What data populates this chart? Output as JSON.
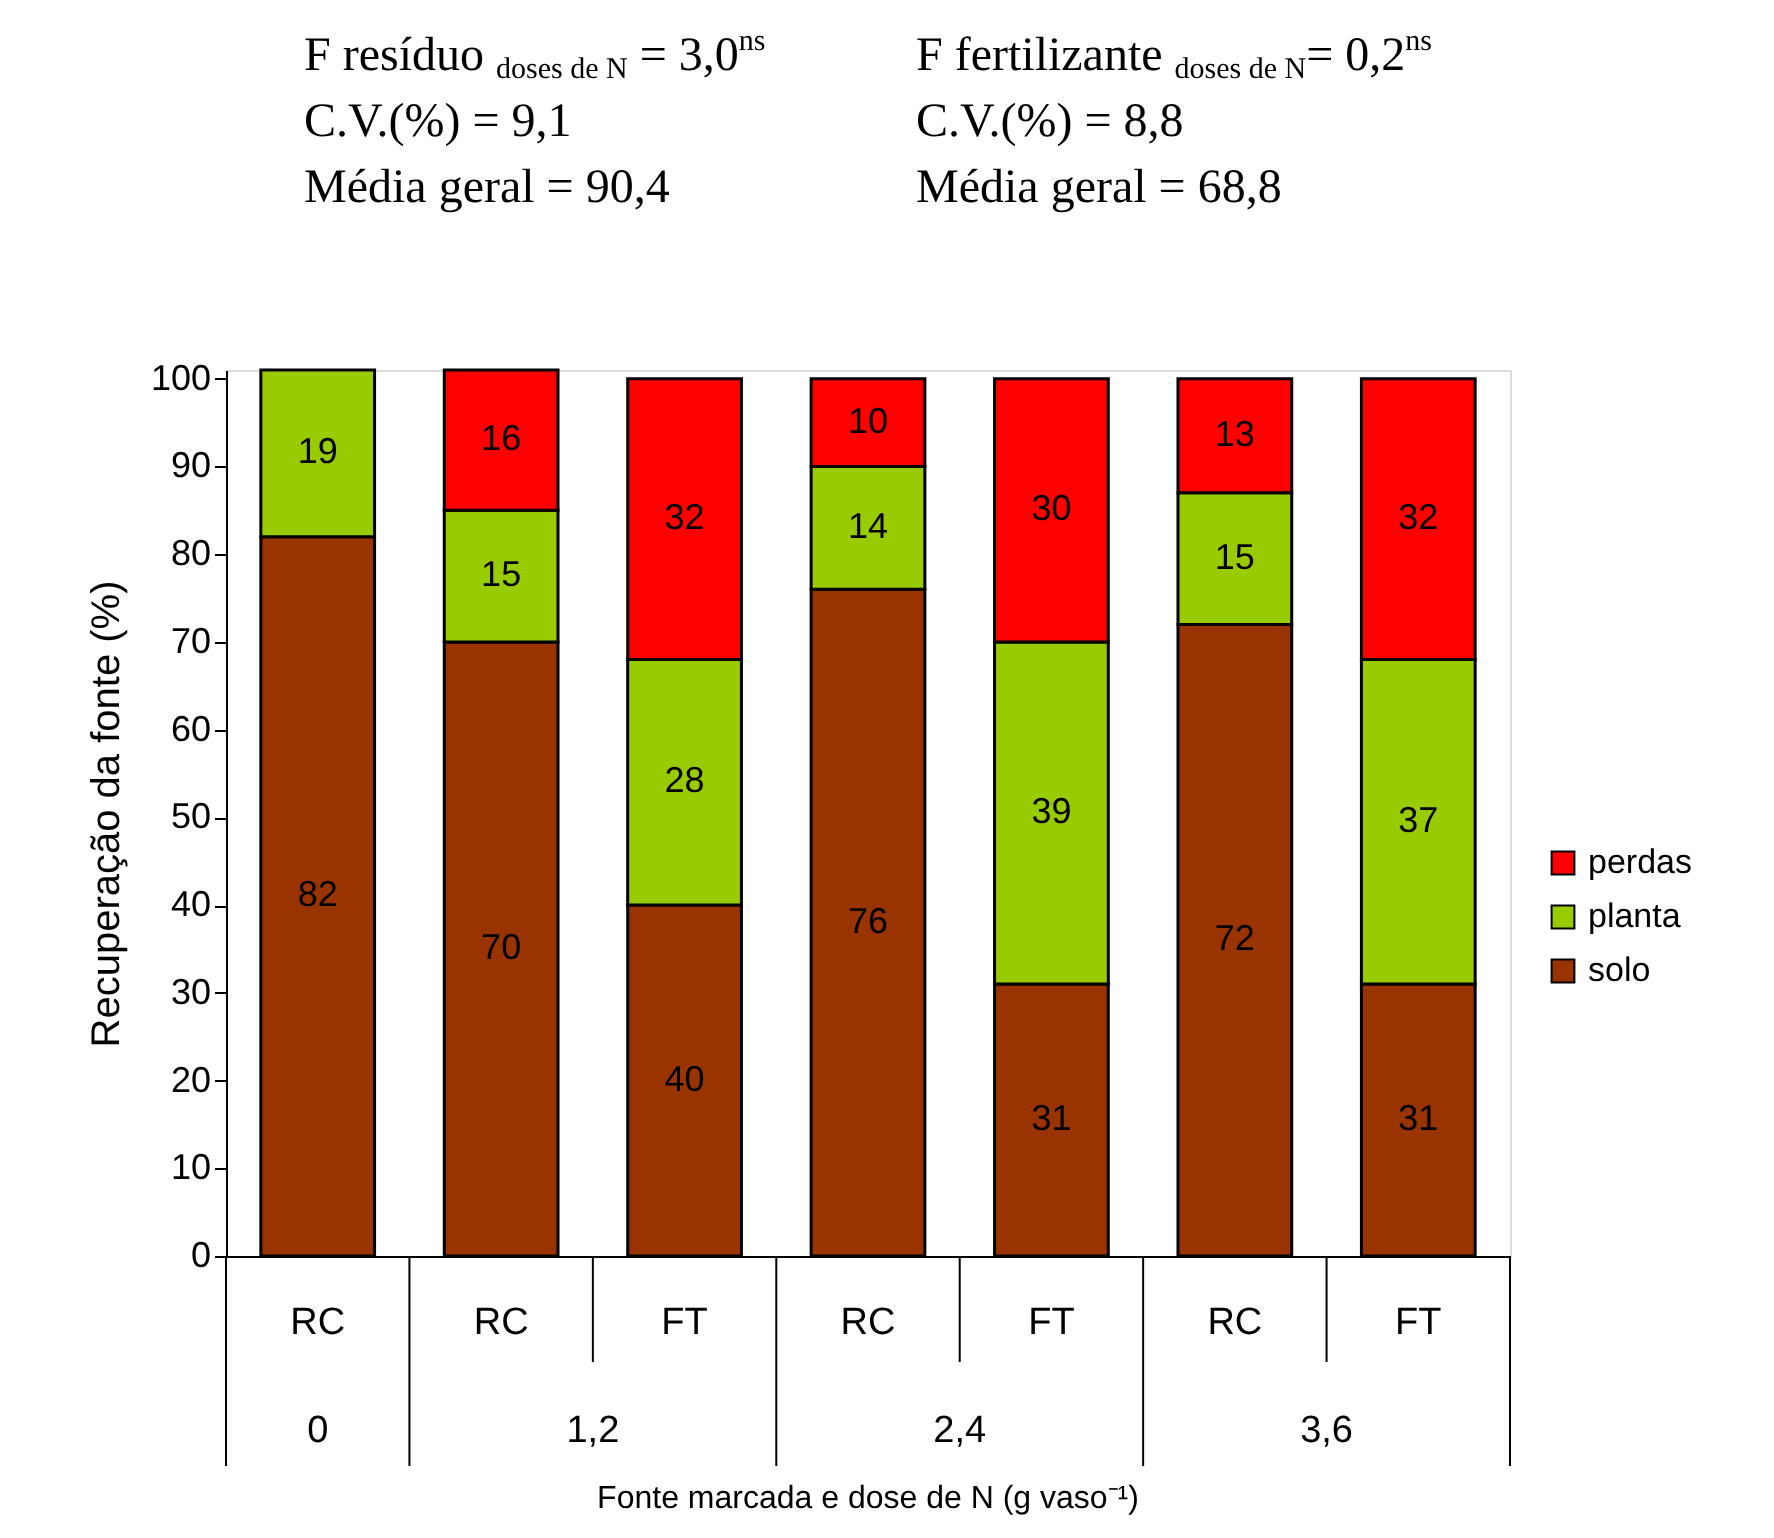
{
  "chart_data": {
    "type": "bar",
    "stacked": true,
    "title": "F resíduo $_{doses de N}$ = 3,0$^{ns}$\nC.V.(%) = 9,1\nMédia geral = 90,4",
    "subtitle": "F fertilizante $_{doses de N}$= 0,2$^{ns}$\nC.V.(%) = 8,8\nMédia geral = 68,8",
    "categories": [
      "RC",
      "RC",
      "FT",
      "RC",
      "FT",
      "RC",
      "FT"
    ],
    "annotations": [
      "0",
      "1,2",
      "2,4",
      "3,6"
    ],
    "xlabel": "Fonte marcada e dose de N (g vaso⁻¹)",
    "ylabel": "Recuperação da fonte (%)",
    "ylim": [
      0,
      101
    ],
    "yticks": [
      0,
      10,
      20,
      30,
      40,
      50,
      60,
      70,
      80,
      90,
      100
    ],
    "series": [
      {
        "name": "solo",
        "color": "#993300",
        "values": [
          82,
          70,
          40,
          76,
          31,
          72,
          31
        ]
      },
      {
        "name": "planta",
        "color": "#99cc00",
        "values": [
          19,
          15,
          28,
          14,
          39,
          15,
          37
        ]
      },
      {
        "name": "perdas",
        "color": "#ff0000",
        "values": [
          null,
          16,
          32,
          10,
          30,
          13,
          32
        ]
      }
    ],
    "data_labels": true,
    "legend": "right"
  }
}
